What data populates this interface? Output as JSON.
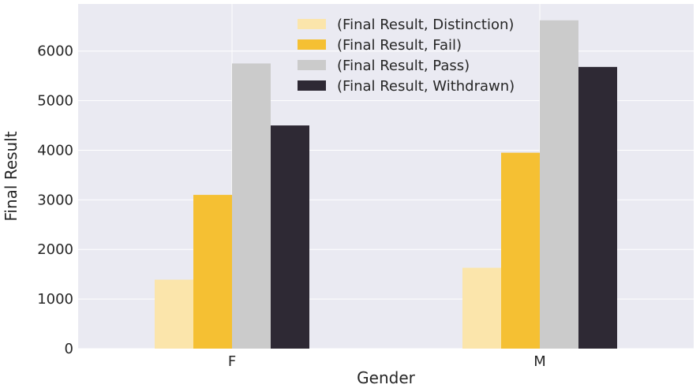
{
  "chart_data": {
    "type": "bar",
    "categories": [
      "F",
      "M"
    ],
    "series": [
      {
        "name": "(Final Result, Distinction)",
        "values": [
          1390,
          1630
        ],
        "color": "#fbe5ab"
      },
      {
        "name": "(Final Result, Fail)",
        "values": [
          3100,
          3950
        ],
        "color": "#f5c033"
      },
      {
        "name": "(Final Result, Pass)",
        "values": [
          5750,
          6620
        ],
        "color": "#cbcbcb"
      },
      {
        "name": "(Final Result, Withdrawn)",
        "values": [
          4500,
          5680
        ],
        "color": "#2e2934"
      }
    ],
    "xlabel": "Gender",
    "ylabel": "Final Result",
    "ylim": [
      0,
      6950
    ],
    "yticks": [
      0,
      1000,
      2000,
      3000,
      4000,
      5000,
      6000
    ],
    "grid": true,
    "legend_position": "top-center",
    "background": "#eaeaf2"
  }
}
